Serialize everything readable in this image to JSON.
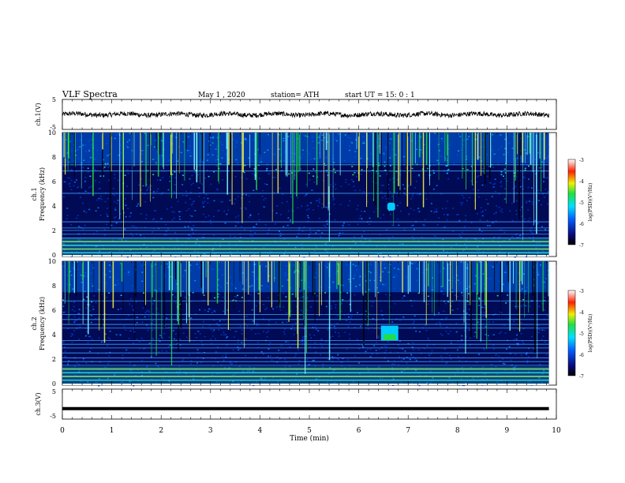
{
  "header": {
    "title": "VLF  Spectra",
    "date": "May 1  , 2020",
    "station": "station= ATH",
    "start": "start  UT  =    15: 0   : 1"
  },
  "colors": {
    "bg_dark": "#000a55",
    "accent_green": "#22dd44",
    "line": "#000000"
  },
  "chart_data": [
    {
      "type": "line",
      "name": "ch1-waveform",
      "ylabel": "ch.1(V)",
      "ylim": [
        -5,
        5
      ],
      "yticks": [
        "5",
        "-5"
      ],
      "xlim": [
        0,
        10
      ],
      "mean": 0.0,
      "amplitude": 1.0
    },
    {
      "type": "heatmap",
      "name": "ch1-spectrogram",
      "ylabel_top": "ch.1",
      "ylabel": "Frequency (kHz)",
      "ylim": [
        0,
        10
      ],
      "yticks": [
        "0",
        "2",
        "4",
        "6",
        "8",
        "10"
      ],
      "xlim": [
        0,
        9.85
      ],
      "colorbar": {
        "label": "log(PSD)(V²/Hz)",
        "ticks": [
          "-3",
          "-4",
          "-5",
          "-6",
          "-7"
        ],
        "range": [
          -7,
          -3
        ]
      },
      "feature": {
        "label": "",
        "time_min": 6.45,
        "time_max": 6.8,
        "freq_khz": 4
      }
    },
    {
      "type": "heatmap",
      "name": "ch2-spectrogram",
      "ylabel_top": "ch.2",
      "ylabel": "Frequency (kHz)",
      "ylim": [
        0,
        10
      ],
      "yticks": [
        "0",
        "2",
        "4",
        "6",
        "8",
        "10"
      ],
      "xlim": [
        0,
        9.85
      ],
      "colorbar": {
        "label": "log(PSD)(V²/Hz)",
        "ticks": [
          "-3",
          "-4",
          "-5",
          "-6",
          "-7"
        ],
        "range": [
          -7,
          -3
        ]
      },
      "feature": {
        "label": "",
        "time_min": 6.45,
        "time_max": 6.8,
        "freq_khz": 4
      }
    },
    {
      "type": "line",
      "name": "ch3-waveform",
      "ylabel": "ch.3(V)",
      "ylim": [
        -5,
        5
      ],
      "yticks": [
        "5",
        "0",
        "-5"
      ],
      "xlim": [
        0,
        10
      ],
      "mean": -1.5,
      "amplitude": 0.1
    }
  ],
  "xaxis": {
    "label": "Time  (min)",
    "ticks": [
      "0",
      "1",
      "2",
      "3",
      "4",
      "5",
      "6",
      "7",
      "8",
      "9",
      "10"
    ],
    "range": [
      0,
      10
    ]
  }
}
